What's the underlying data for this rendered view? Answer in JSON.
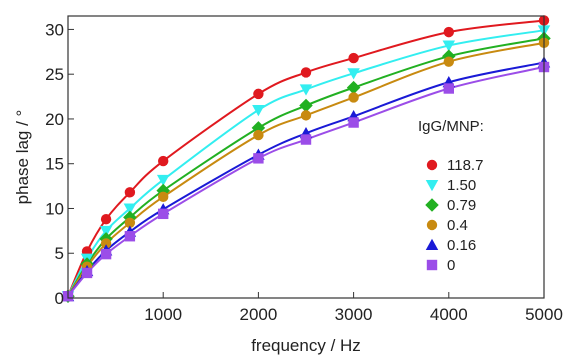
{
  "chart_data": {
    "type": "scatter",
    "xlabel": "frequency / Hz",
    "ylabel": "phase lag / °",
    "xlim": [
      0,
      5000
    ],
    "ylim": [
      0,
      31.5
    ],
    "xticks": [
      1000,
      2000,
      3000,
      4000,
      5000
    ],
    "yticks": [
      0,
      5,
      10,
      15,
      20,
      25,
      30
    ],
    "x_tick_labels": [
      "1000",
      "2000",
      "3000",
      "4000",
      "5000"
    ],
    "y_tick_labels": [
      "0",
      "5",
      "10",
      "15",
      "20",
      "25",
      "30"
    ],
    "grid": false,
    "legend_title": "IgG/MNP:",
    "legend_position": "right",
    "fit_lines": true,
    "series": [
      {
        "name": "118.7",
        "color": "#e0191f",
        "marker": "circle",
        "x": [
          0,
          200,
          400,
          650,
          1000,
          2000,
          2500,
          3000,
          4000,
          5000
        ],
        "y": [
          0.2,
          5.2,
          8.8,
          11.8,
          15.3,
          22.8,
          25.2,
          26.8,
          29.7,
          31.0
        ]
      },
      {
        "name": "1.50",
        "color": "#33eef0",
        "marker": "triangle-down",
        "x": [
          0,
          200,
          400,
          650,
          1000,
          2000,
          2500,
          3000,
          4000,
          5000
        ],
        "y": [
          0.2,
          4.4,
          7.5,
          10.0,
          13.2,
          21.0,
          23.3,
          25.1,
          28.2,
          29.9
        ]
      },
      {
        "name": "0.79",
        "color": "#22b022",
        "marker": "diamond",
        "x": [
          0,
          200,
          400,
          650,
          1000,
          2000,
          2500,
          3000,
          4000,
          5000
        ],
        "y": [
          0.2,
          3.8,
          6.6,
          9.0,
          12.0,
          19.0,
          21.5,
          23.5,
          27.0,
          29.0
        ]
      },
      {
        "name": "0.4",
        "color": "#c88a10",
        "marker": "circle",
        "x": [
          0,
          200,
          400,
          650,
          1000,
          2000,
          2500,
          3000,
          4000,
          5000
        ],
        "y": [
          0.2,
          3.5,
          6.1,
          8.4,
          11.3,
          18.2,
          20.4,
          22.4,
          26.4,
          28.5
        ]
      },
      {
        "name": "0.16",
        "color": "#1a1ad6",
        "marker": "triangle-up",
        "x": [
          0,
          200,
          400,
          650,
          1000,
          2000,
          2500,
          3000,
          4000,
          5000
        ],
        "y": [
          0.2,
          3.0,
          5.3,
          7.4,
          9.9,
          16.0,
          18.4,
          20.3,
          24.1,
          26.3
        ]
      },
      {
        "name": "0",
        "color": "#9b4de8",
        "marker": "square",
        "x": [
          0,
          200,
          400,
          650,
          1000,
          2000,
          2500,
          3000,
          4000,
          5000
        ],
        "y": [
          0.2,
          2.8,
          4.9,
          6.9,
          9.4,
          15.6,
          17.7,
          19.6,
          23.4,
          25.8
        ]
      }
    ]
  }
}
